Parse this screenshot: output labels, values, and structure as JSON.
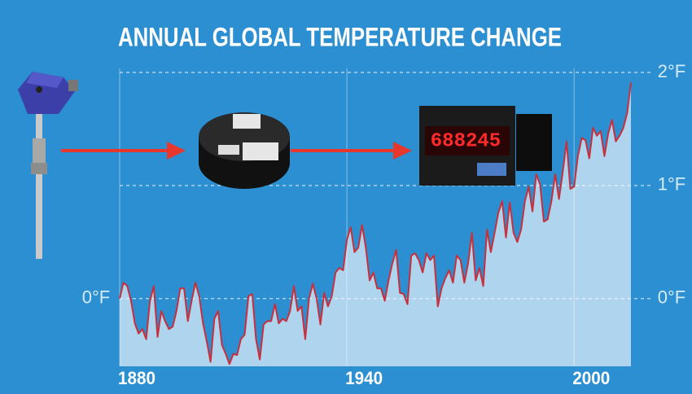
{
  "chart_data": {
    "type": "line",
    "title": "ANNUAL GLOBAL TEMPERATURE CHANGE",
    "meter_display": "688245",
    "x": [
      1880,
      1881,
      1882,
      1883,
      1884,
      1885,
      1886,
      1887,
      1888,
      1889,
      1890,
      1891,
      1892,
      1893,
      1894,
      1895,
      1896,
      1897,
      1898,
      1899,
      1900,
      1901,
      1902,
      1903,
      1904,
      1905,
      1906,
      1907,
      1908,
      1909,
      1910,
      1911,
      1912,
      1913,
      1914,
      1915,
      1916,
      1917,
      1918,
      1919,
      1920,
      1921,
      1922,
      1923,
      1924,
      1925,
      1926,
      1927,
      1928,
      1929,
      1930,
      1931,
      1932,
      1933,
      1934,
      1935,
      1936,
      1937,
      1938,
      1939,
      1940,
      1941,
      1942,
      1943,
      1944,
      1945,
      1946,
      1947,
      1948,
      1949,
      1950,
      1951,
      1952,
      1953,
      1954,
      1955,
      1956,
      1957,
      1958,
      1959,
      1960,
      1961,
      1962,
      1963,
      1964,
      1965,
      1966,
      1967,
      1968,
      1969,
      1970,
      1971,
      1972,
      1973,
      1974,
      1975,
      1976,
      1977,
      1978,
      1979,
      1980,
      1981,
      1982,
      1983,
      1984,
      1985,
      1986,
      1987,
      1988,
      1989,
      1990,
      1991,
      1992,
      1993,
      1994,
      1995,
      1996,
      1997,
      1998,
      1999,
      2000,
      2001,
      2002,
      2003,
      2004,
      2005,
      2006,
      2007,
      2008,
      2009,
      2010,
      2011,
      2012,
      2013,
      2014,
      2015
    ],
    "series": [
      {
        "name": "Temperature change",
        "color": "#c8303c",
        "values": [
          0.0,
          0.14,
          0.11,
          -0.02,
          -0.22,
          -0.31,
          -0.27,
          -0.36,
          -0.02,
          0.11,
          -0.34,
          -0.11,
          -0.2,
          -0.27,
          -0.25,
          -0.11,
          0.09,
          0.09,
          -0.2,
          -0.02,
          0.14,
          0.02,
          -0.22,
          -0.38,
          -0.56,
          -0.18,
          -0.11,
          -0.41,
          -0.49,
          -0.58,
          -0.49,
          -0.5,
          -0.36,
          -0.32,
          0.02,
          0.04,
          -0.36,
          -0.54,
          -0.23,
          -0.2,
          -0.2,
          -0.05,
          -0.22,
          -0.18,
          -0.2,
          -0.11,
          0.11,
          -0.11,
          -0.07,
          -0.36,
          0.0,
          0.13,
          0.0,
          -0.23,
          0.05,
          -0.07,
          0.02,
          0.23,
          0.27,
          0.25,
          0.52,
          0.63,
          0.41,
          0.45,
          0.65,
          0.45,
          0.16,
          0.23,
          0.09,
          0.09,
          -0.02,
          0.16,
          0.31,
          0.43,
          0.05,
          0.04,
          -0.05,
          0.38,
          0.4,
          0.34,
          0.23,
          0.4,
          0.34,
          0.38,
          -0.07,
          0.09,
          0.18,
          0.25,
          0.14,
          0.38,
          0.34,
          0.14,
          0.31,
          0.58,
          0.16,
          0.27,
          0.11,
          0.61,
          0.41,
          0.58,
          0.76,
          0.86,
          0.54,
          0.85,
          0.58,
          0.5,
          0.61,
          0.86,
          0.99,
          0.77,
          1.1,
          1.01,
          0.68,
          0.7,
          0.86,
          1.1,
          0.88,
          1.12,
          1.39,
          0.97,
          0.99,
          1.26,
          1.42,
          1.4,
          1.24,
          1.51,
          1.44,
          1.48,
          1.26,
          1.46,
          1.58,
          1.39,
          1.44,
          1.51,
          1.64,
          1.91
        ]
      }
    ],
    "xlim": [
      1880,
      2015
    ],
    "xticks": [
      1880,
      1940,
      2000
    ],
    "ylim": [
      -0.6,
      2
    ],
    "yticks": [
      {
        "value": 0,
        "label": "0°F"
      },
      {
        "value": 1,
        "label": "1°F"
      },
      {
        "value": 2,
        "label": "2°F"
      }
    ],
    "grid": true
  }
}
